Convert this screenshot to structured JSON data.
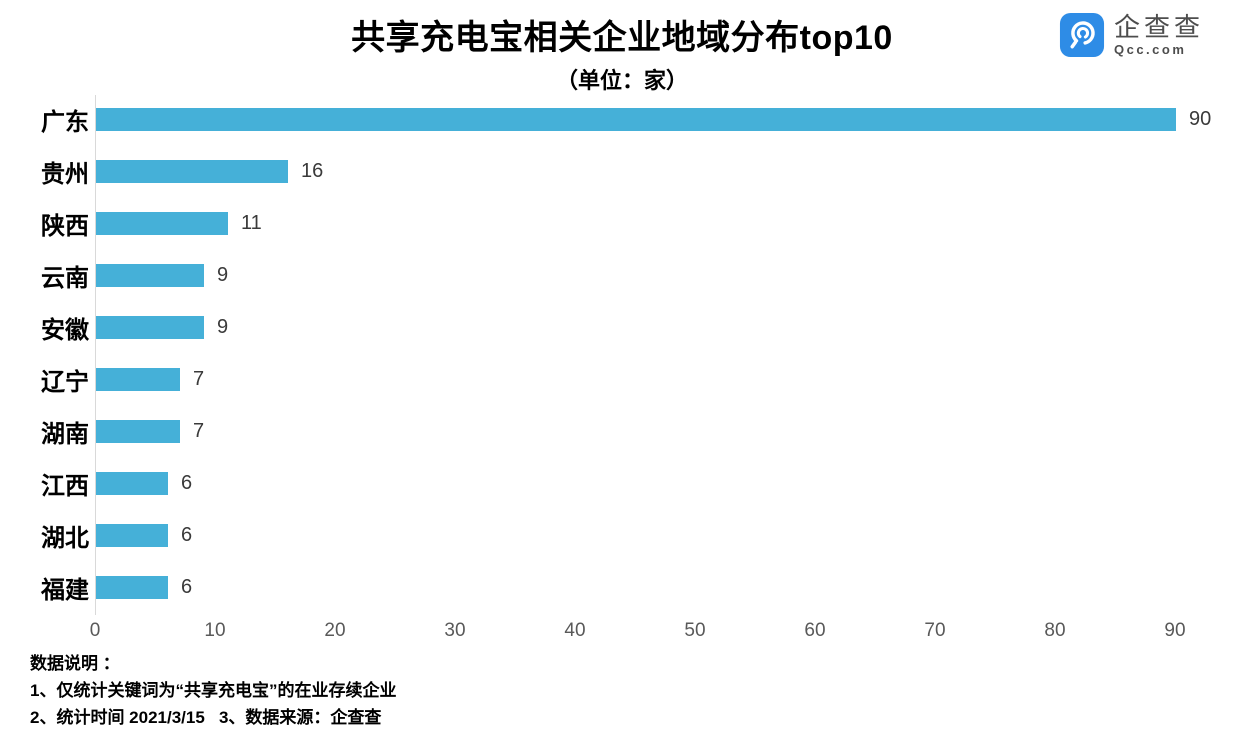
{
  "header": {
    "title": "共享充电宝相关企业地域分布top10",
    "subtitle": "（单位：家）"
  },
  "logo": {
    "name": "企查查",
    "domain": "Qcc.com",
    "icon_color": "#2e8ce6"
  },
  "chart_data": {
    "type": "bar",
    "orientation": "horizontal",
    "title": "共享充电宝相关企业地域分布top10",
    "subtitle": "（单位：家）",
    "categories": [
      "广东",
      "贵州",
      "陕西",
      "云南",
      "安徽",
      "辽宁",
      "湖南",
      "江西",
      "湖北",
      "福建"
    ],
    "values": [
      90,
      16,
      11,
      9,
      9,
      7,
      7,
      6,
      6,
      6
    ],
    "unit": "家",
    "xlim": [
      0,
      90
    ],
    "x_ticks": [
      0,
      10,
      20,
      30,
      40,
      50,
      60,
      70,
      80,
      90
    ],
    "bar_color": "#45b0d8",
    "value_label_color": "#3a3a3a",
    "tick_color": "#595959",
    "axis_line_color": "#d9d9d9",
    "grid": false,
    "legend": "none",
    "value_labels": true
  },
  "footer": {
    "lines": [
      "数据说明 ：",
      "1、仅统计关键词为“共享充电宝”的在业存续企业",
      "2、统计时间 2021/3/15   3、数据来源：企查查"
    ]
  }
}
